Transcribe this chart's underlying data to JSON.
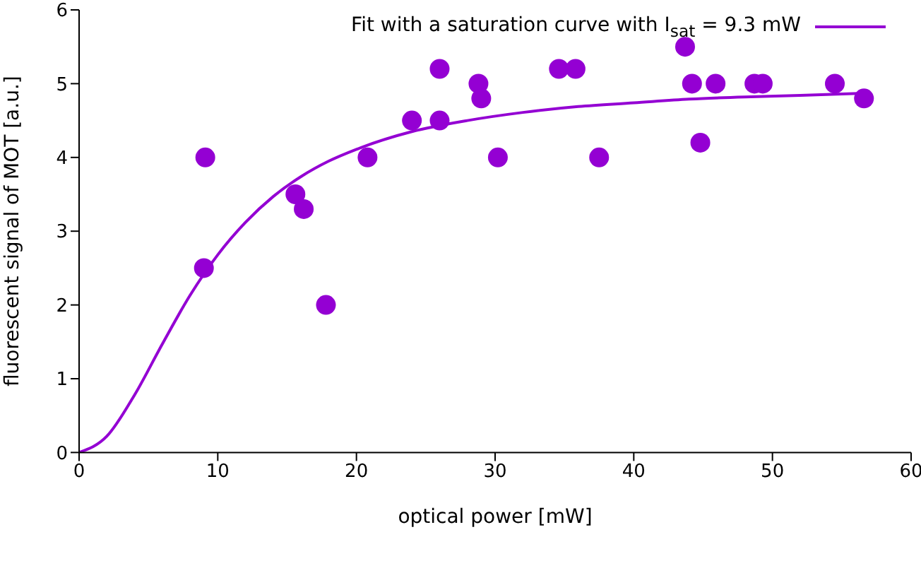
{
  "chart_data": {
    "type": "scatter",
    "xlabel": "optical power [mW]",
    "ylabel": "fluorescent signal of MOT [a.u.]",
    "xlim": [
      0,
      60
    ],
    "xticks": [
      0,
      10,
      20,
      30,
      40,
      50,
      60
    ],
    "ylim": [
      0,
      6
    ],
    "yticks": [
      0,
      1,
      2,
      3,
      4,
      5,
      6
    ],
    "legend": "top right",
    "series": [
      {
        "color": "#9400d3",
        "marker": "circle",
        "x": [
          9.1,
          9.0,
          15.6,
          16.2,
          17.8,
          20.8,
          24.0,
          26.0,
          26.0,
          28.8,
          29.0,
          30.2,
          34.6,
          35.8,
          37.5,
          43.7,
          44.2,
          44.8,
          45.9,
          48.7,
          49.3,
          54.5,
          56.6
        ],
        "values": [
          4.0,
          2.5,
          3.5,
          3.3,
          2.0,
          4.0,
          4.5,
          5.2,
          4.5,
          5.0,
          4.8,
          4.0,
          5.2,
          5.2,
          4.0,
          5.5,
          5.0,
          4.2,
          5.0,
          5.0,
          5.0,
          5.0,
          4.8
        ]
      },
      {
        "type": "line",
        "name": "Fit with a saturation curve with I$_{sat}$ = 9.3 mW",
        "color": "#9400d3",
        "x": [
          0,
          2,
          4,
          6,
          8,
          10,
          12,
          14,
          16,
          18,
          20,
          24,
          28,
          32,
          36,
          40,
          44,
          48,
          52,
          56.6
        ],
        "values": [
          0,
          0.22,
          0.78,
          1.47,
          2.13,
          2.68,
          3.12,
          3.47,
          3.74,
          3.95,
          4.11,
          4.35,
          4.5,
          4.61,
          4.69,
          4.74,
          4.79,
          4.82,
          4.84,
          4.87
        ]
      }
    ]
  }
}
